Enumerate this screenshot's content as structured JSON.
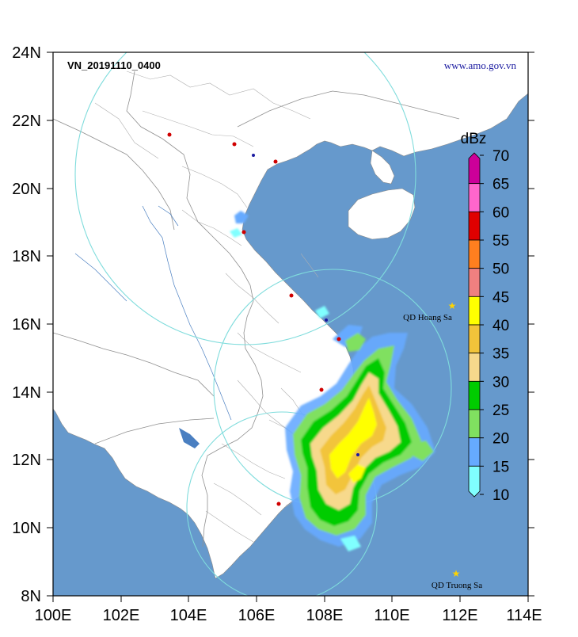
{
  "map": {
    "title": "VN_20191110_0400",
    "source_url": "www.amo.gov.vn",
    "lon_labels": [
      "100E",
      "102E",
      "104E",
      "106E",
      "108E",
      "110E",
      "112E",
      "114E"
    ],
    "lat_labels": [
      "24N",
      "22N",
      "20N",
      "18N",
      "16N",
      "14N",
      "12N",
      "10N",
      "8N"
    ],
    "lon_range": [
      100,
      114
    ],
    "lat_range": [
      8,
      24
    ],
    "places": [
      {
        "name": "QD Hoang Sa",
        "lon": 111.9,
        "lat": 16.5
      },
      {
        "name": "QD Truong Sa",
        "lon": 111.9,
        "lat": 8.65
      }
    ],
    "colors": {
      "sea": "#6699cc",
      "land": "#ffffff",
      "border": "#a0a0a0",
      "coverage_ring": "#7fdcdc",
      "frame": "#000000"
    }
  },
  "colorbar": {
    "unit": "dBz",
    "tick_labels": [
      "70",
      "65",
      "60",
      "55",
      "50",
      "45",
      "40",
      "35",
      "30",
      "25",
      "20",
      "15",
      "10"
    ],
    "bins": [
      {
        "from": 65,
        "to": 70,
        "color": "#cc0099"
      },
      {
        "from": 60,
        "to": 65,
        "color": "#ff66cc"
      },
      {
        "from": 55,
        "to": 60,
        "color": "#e00000"
      },
      {
        "from": 50,
        "to": 55,
        "color": "#ff7f1f"
      },
      {
        "from": 45,
        "to": 50,
        "color": "#f08080"
      },
      {
        "from": 40,
        "to": 45,
        "color": "#ffff00"
      },
      {
        "from": 35,
        "to": 40,
        "color": "#f2c43a"
      },
      {
        "from": 30,
        "to": 35,
        "color": "#f7d98c"
      },
      {
        "from": 25,
        "to": 30,
        "color": "#00cc00"
      },
      {
        "from": 20,
        "to": 25,
        "color": "#80e060"
      },
      {
        "from": 15,
        "to": 20,
        "color": "#66aaff"
      },
      {
        "from": 10,
        "to": 15,
        "color": "#80ffff"
      }
    ]
  }
}
